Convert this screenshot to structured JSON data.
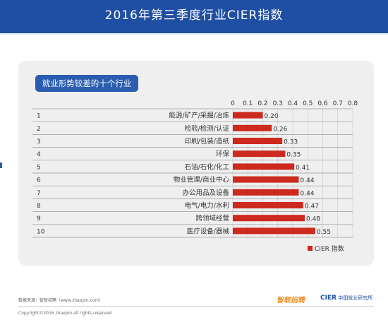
{
  "header": {
    "title": "2016年第三季度行业CIER指数"
  },
  "panel": {
    "label": "就业形势较差的十个行业"
  },
  "chart_data": {
    "type": "bar",
    "orientation": "horizontal",
    "ranks": [
      "1",
      "2",
      "3",
      "4",
      "5",
      "6",
      "7",
      "8",
      "9",
      "10"
    ],
    "categories": [
      "能源/矿产/采掘/冶炼",
      "检验/检测/认证",
      "印刷/包装/造纸",
      "环保",
      "石油/石化/化工",
      "物业管理/商业中心",
      "办公用品及设备",
      "电气/电力/水利",
      "跨领域经营",
      "医疗设备/器械"
    ],
    "values": [
      0.2,
      0.26,
      0.33,
      0.35,
      0.41,
      0.44,
      0.44,
      0.47,
      0.48,
      0.55
    ],
    "value_labels": [
      "0.20",
      "0.26",
      "0.33",
      "0.35",
      "0.41",
      "0.44",
      "0.44",
      "0.47",
      "0.48",
      "0.55"
    ],
    "xticks": [
      "0",
      "0.1",
      "0.2",
      "0.3",
      "0.4",
      "0.5",
      "0.6",
      "0.7",
      "0.8"
    ],
    "xlim": [
      0,
      0.8
    ],
    "legend": {
      "label": "CIER 指数",
      "position": "bottom-right"
    },
    "bar_color": "#cc2a1f",
    "grid": true
  },
  "footer": {
    "source": "数据来源：智联招聘（www.zhaopin.com）",
    "copyright": "Copyright©2016 zhaopin all rights reserved",
    "logo_left": "智联招聘",
    "logo_right_mark": "CIER",
    "logo_right_text": "中国就业研究所"
  },
  "colors": {
    "header": "#1f4fa3",
    "pill": "#2a5db0",
    "panel": "#efefef"
  }
}
